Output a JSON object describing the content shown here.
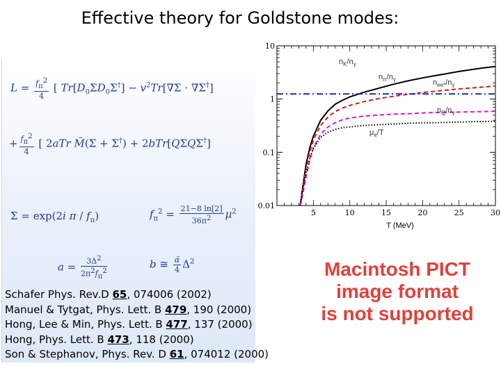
{
  "title": "Effective theory for Goldstone modes:",
  "formulas": {
    "lagrangian_line1": "L = (f_π²/4) [ Tr[D₀ΣD₀Σ†] − v² Tr[∇Σ · ∇Σ†] ]",
    "lagrangian_line2": "+ (f_π²/4) [ 2aTr M̃(Σ + Σ†) + 2bTr[QΣQΣ†] ]",
    "sigma_def": "Σ = exp(2i π / f_π)",
    "fpi_def": "f_π² = ((21−8 ln[2]) / 36π²) μ²",
    "a_def": "a = 3Δ² / (2π² f_π²)",
    "b_def": "b ≅ (α̃/4) Δ²"
  },
  "references": [
    {
      "pre": "Schafer Phys. Rev.D ",
      "vol": "65",
      "post": ", 074006 (2002)"
    },
    {
      "pre": "Manuel & Tytgat, Phys. Lett. B ",
      "vol": "479",
      "post": ", 190 (2000)"
    },
    {
      "pre": "Hong, Lee & Min, Phys. Lett. B ",
      "vol": "477",
      "post": ", 137 (2000)"
    },
    {
      "pre": "Hong, Phys. Lett. B ",
      "vol": "473",
      "post": ", 118 (2000)"
    },
    {
      "pre": "Son & Stephanov, Phys. Rev. D ",
      "vol": "61",
      "post": ", 074012 (2000)"
    }
  ],
  "pict_notice": [
    "Macintosh PICT",
    "image format",
    "is not supported"
  ],
  "chart_data": {
    "type": "line",
    "xlabel": "T (MeV)",
    "ylabel": "",
    "xlim": [
      0,
      30
    ],
    "ylim": [
      0.01,
      10
    ],
    "yscale": "log",
    "x_ticks": [
      5,
      10,
      15,
      20,
      25,
      30
    ],
    "y_ticks": [
      {
        "value": 0.01,
        "label": "0.01"
      },
      {
        "value": 0.1,
        "label": "0.1"
      },
      {
        "value": 1,
        "label": "1"
      },
      {
        "value": 10,
        "label": "10"
      }
    ],
    "series": [
      {
        "name": "n_K/n_γ",
        "label_main": "n",
        "label_sub": "K",
        "label_den": "/n",
        "label_den_sub": "γ",
        "color": "#000000",
        "style": "solid",
        "x": [
          3.2,
          3.5,
          4,
          4.5,
          5,
          6,
          7,
          8,
          9,
          10,
          12,
          14,
          16,
          18,
          20,
          22,
          25,
          28,
          30
        ],
        "y": [
          0.01,
          0.02,
          0.06,
          0.12,
          0.2,
          0.4,
          0.6,
          0.8,
          0.95,
          1.1,
          1.35,
          1.6,
          1.9,
          2.2,
          2.5,
          2.8,
          3.3,
          3.8,
          4.1
        ]
      },
      {
        "name": "n_π/n_γ",
        "label_main": "n",
        "label_sub": "π",
        "label_den": "/n",
        "label_den_sub": "γ",
        "color": "#d11a1a",
        "style": "dashed",
        "x": [
          3.2,
          3.5,
          4,
          4.5,
          5,
          6,
          7,
          8,
          9,
          10,
          12,
          14,
          16,
          18,
          20,
          22,
          25,
          28,
          30
        ],
        "y": [
          0.01,
          0.02,
          0.05,
          0.1,
          0.17,
          0.32,
          0.46,
          0.58,
          0.68,
          0.76,
          0.9,
          1.02,
          1.13,
          1.23,
          1.33,
          1.42,
          1.55,
          1.67,
          1.75
        ]
      },
      {
        "name": "n_ee*/n_γ",
        "label_main": "n",
        "label_sub": "ee*",
        "label_den": "/n",
        "label_den_sub": "γ",
        "color": "#1a2aa8",
        "style": "dashdot",
        "x": [
          0,
          30
        ],
        "y": [
          1.25,
          1.25
        ]
      },
      {
        "name": "n_Q/n_γ",
        "label_main": "n",
        "label_sub": "Q",
        "label_den": "/n",
        "label_den_sub": "γ",
        "color": "#d11ad1",
        "style": "dashed",
        "x": [
          3.2,
          3.5,
          4,
          4.5,
          5,
          6,
          7,
          8,
          9,
          10,
          12,
          14,
          16,
          18,
          20,
          22,
          25,
          28,
          30
        ],
        "y": [
          0.01,
          0.015,
          0.035,
          0.07,
          0.12,
          0.22,
          0.3,
          0.36,
          0.41,
          0.44,
          0.48,
          0.5,
          0.52,
          0.53,
          0.55,
          0.56,
          0.57,
          0.58,
          0.59
        ]
      },
      {
        "name": "μ_e/T",
        "label_main": "μ",
        "label_sub": "e",
        "label_den": "/T",
        "label_den_sub": "",
        "color": "#000000",
        "style": "dotted",
        "x": [
          3.2,
          3.5,
          4,
          4.5,
          5,
          6,
          7,
          8,
          9,
          10,
          12,
          14,
          16,
          18,
          20,
          22,
          25,
          28,
          30
        ],
        "y": [
          0.01,
          0.018,
          0.04,
          0.075,
          0.12,
          0.19,
          0.24,
          0.27,
          0.29,
          0.3,
          0.32,
          0.33,
          0.34,
          0.35,
          0.36,
          0.36,
          0.37,
          0.38,
          0.38
        ]
      }
    ]
  }
}
